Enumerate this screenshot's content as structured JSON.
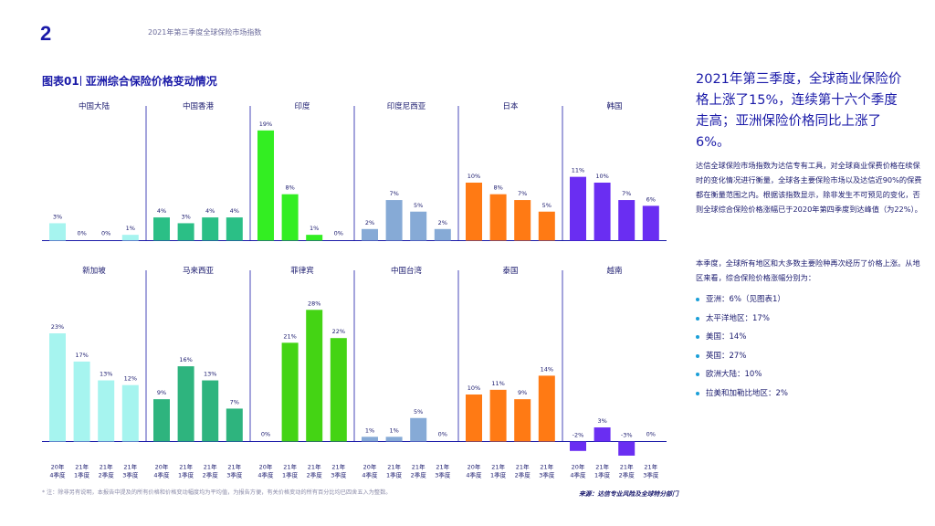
{
  "header": {
    "page_number": "2",
    "report_title": "2021年第三季度全球保险市场指数"
  },
  "figure": {
    "label": "图表01",
    "title": "亚洲综合保险价格变动情况"
  },
  "side": {
    "lead": "2021年第三季度，全球商业保险价格上涨了15%，连续第十六个季度走高；亚洲保险价格同比上涨了6%。",
    "para1": "达信全球保险市场指数为达信专有工具，对全球商业保费价格在续保时的变化情况进行衡量，全球各主要保险市场以及达信近90%的保费都在衡量范围之内。根据该指数显示，除非发生不可预见的变化，否则全球综合保险价格涨幅已于2020年第四季度到达峰值（为22%）。",
    "para2": "本季度，全球所有地区和大多数主要险种再次经历了价格上涨。从地区来看，综合保险价格涨幅分别为：",
    "bullets": [
      "亚洲：6%（见图表1）",
      "太平洋地区：17%",
      "美国：14%",
      "英国：27%",
      "欧洲大陆：10%",
      "拉美和加勒比地区：2%"
    ],
    "bullet_color": "#1a9fd8"
  },
  "footnote": "* 注：除非另有说明，本报告中提及的所有价格和价格变动幅度均为平均值，为报告方便，有关价格变动的所有百分比均已四舍五入为整数。",
  "source": "来源：达信专业风险及全球特分部门",
  "chart_data": {
    "type": "bar",
    "categories": [
      "20年\n4季度",
      "21年\n1季度",
      "21年\n2季度",
      "21年\n3季度"
    ],
    "value_suffix": "%",
    "panels": [
      {
        "name": "中国大陆",
        "row": 0,
        "color": "#a6f4ef",
        "values": [
          3,
          0,
          0,
          1
        ]
      },
      {
        "name": "中国香港",
        "row": 0,
        "color": "#2bbf86",
        "values": [
          4,
          3,
          4,
          4
        ]
      },
      {
        "name": "印度",
        "row": 0,
        "color": "#33ee22",
        "values": [
          19,
          8,
          1,
          0
        ]
      },
      {
        "name": "印度尼西亚",
        "row": 0,
        "color": "#86aad6",
        "values": [
          2,
          7,
          5,
          2
        ]
      },
      {
        "name": "日本",
        "row": 0,
        "color": "#ff7a14",
        "values": [
          10,
          8,
          7,
          5
        ]
      },
      {
        "name": "韩国",
        "row": 0,
        "color": "#6a2ef2",
        "values": [
          11,
          10,
          7,
          6
        ]
      },
      {
        "name": "新加坡",
        "row": 1,
        "color": "#a6f4ef",
        "values": [
          23,
          17,
          13,
          12
        ]
      },
      {
        "name": "马来西亚",
        "row": 1,
        "color": "#2eb47e",
        "values": [
          9,
          16,
          13,
          7
        ]
      },
      {
        "name": "菲律宾",
        "row": 1,
        "color": "#44d414",
        "values": [
          0,
          21,
          28,
          22
        ]
      },
      {
        "name": "中国台湾",
        "row": 1,
        "color": "#86aad6",
        "values": [
          1,
          1,
          5,
          0
        ]
      },
      {
        "name": "泰国",
        "row": 1,
        "color": "#ff7a14",
        "values": [
          10,
          11,
          9,
          14
        ]
      },
      {
        "name": "越南",
        "row": 1,
        "color": "#6a2ef2",
        "values": [
          -2,
          3,
          -3,
          0
        ]
      }
    ]
  }
}
